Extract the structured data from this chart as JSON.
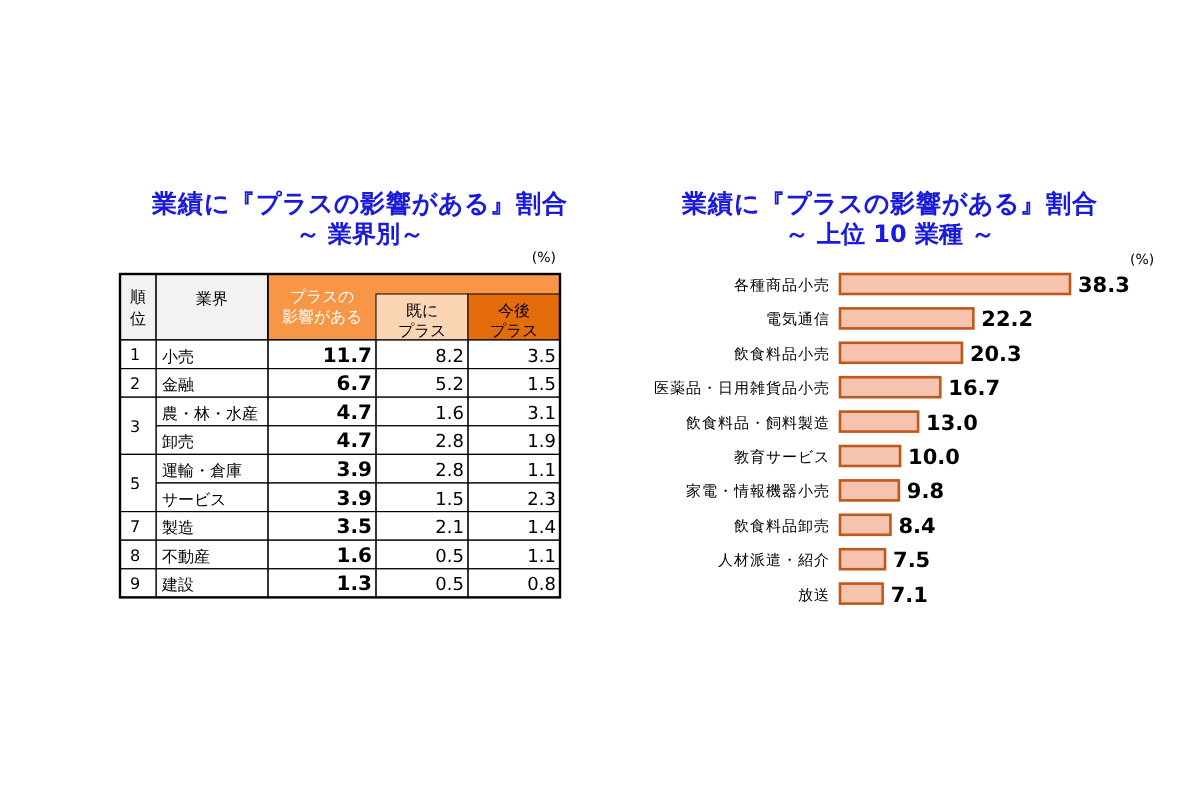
{
  "chart_data": [
    {
      "type": "heatmap",
      "title": "業績に『プラスの影響がある』割合",
      "subtitle": "～ 業界別～",
      "categories": [
        "プラスの影響がある",
        "既にプラス",
        "今後プラス"
      ],
      "y_categories": [
        "小売",
        "金融",
        "農・林・水産",
        "卸売",
        "運輸・倉庫",
        "サービス",
        "製造",
        "不動産",
        "建設"
      ],
      "y2_categories": [
        "1",
        "2",
        "3",
        null,
        "5",
        null,
        "7",
        "8",
        "9"
      ],
      "cells": [
        [
          11.7,
          8.2,
          3.5
        ],
        [
          6.7,
          5.2,
          1.5
        ],
        [
          4.7,
          1.6,
          3.1
        ],
        [
          4.7,
          2.8,
          1.9
        ],
        [
          3.9,
          2.8,
          1.1
        ],
        [
          3.9,
          1.5,
          2.3
        ],
        [
          3.5,
          2.1,
          1.4
        ],
        [
          1.6,
          0.5,
          1.1
        ],
        [
          1.3,
          0.5,
          0.8
        ]
      ],
      "data_labels": true,
      "annotations": [
        "順位",
        "業界",
        "(%)"
      ]
    },
    {
      "type": "bar",
      "orientation": "horizontal",
      "title": "業績に『プラスの影響がある』割合",
      "subtitle": "～ 上位 10 業種 ～",
      "categories": [
        "各種商品小売",
        "電気通信",
        "飲食料品小売",
        "医薬品・日用雑貨品小売",
        "飲食料品・飼料製造",
        "教育サービス",
        "家電・情報機器小売",
        "飲食料品卸売",
        "人材派遣・紹介",
        "放送"
      ],
      "values": [
        38.3,
        22.2,
        20.3,
        16.7,
        13.0,
        10.0,
        9.8,
        8.4,
        7.5,
        7.1
      ],
      "color": "#f6c4ae",
      "value_labels": [
        "38.3",
        "22.2",
        "20.3",
        "16.7",
        "13.0",
        "10.0",
        "9.8",
        "8.4",
        "7.5",
        "7.1"
      ],
      "annotations": [
        "(%)"
      ]
    }
  ]
}
